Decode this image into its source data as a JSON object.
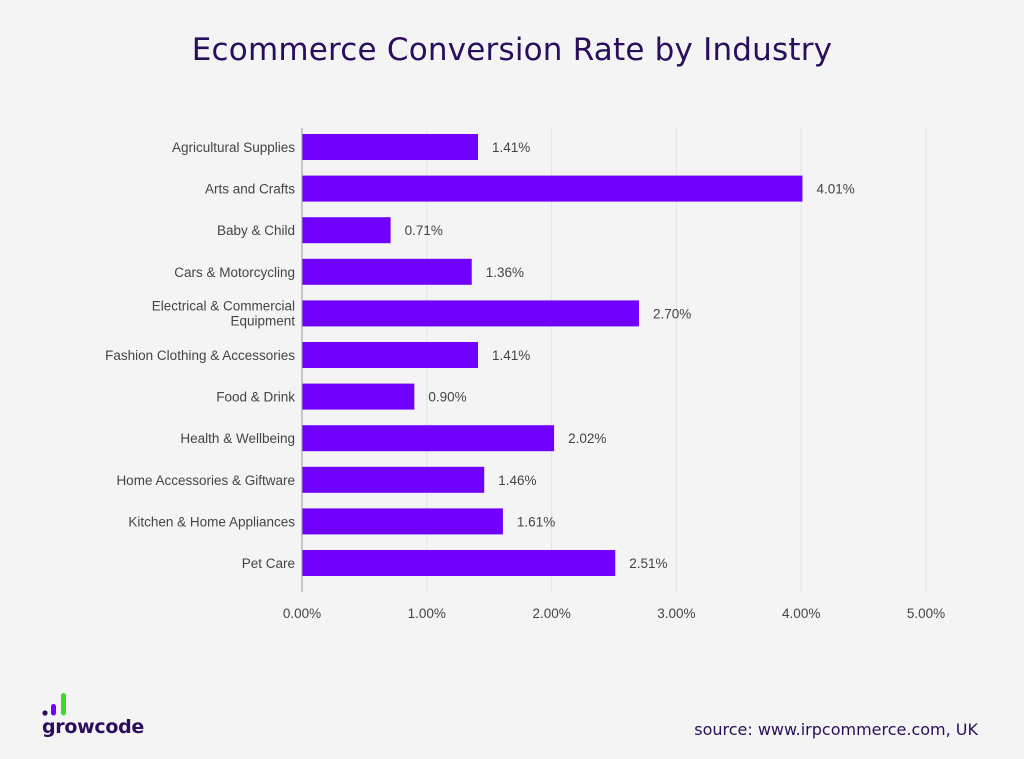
{
  "chart_data": {
    "type": "bar",
    "orientation": "horizontal",
    "title": "Ecommerce Conversion Rate by Industry",
    "categories": [
      "Agricultural Supplies",
      "Arts and Crafts",
      "Baby & Child",
      "Cars & Motorcycling",
      "Electrical & Commercial Equipment",
      "Fashion Clothing & Accessories",
      "Food & Drink",
      "Health & Wellbeing",
      "Home Accessories & Giftware",
      "Kitchen & Home Appliances",
      "Pet Care"
    ],
    "values": [
      1.41,
      4.01,
      0.71,
      1.36,
      2.7,
      1.41,
      0.9,
      2.02,
      1.46,
      1.61,
      2.51
    ],
    "value_labels": [
      "1.41%",
      "4.01%",
      "0.71%",
      "1.36%",
      "2.70%",
      "1.41%",
      "0.90%",
      "2.02%",
      "1.46%",
      "1.61%",
      "2.51%"
    ],
    "xlim": [
      0,
      5
    ],
    "xticks": [
      "0.00%",
      "1.00%",
      "2.00%",
      "3.00%",
      "4.00%",
      "5.00%"
    ],
    "grid": true,
    "bar_color": "#7000ff",
    "xlabel": "",
    "ylabel": ""
  },
  "brand": {
    "logo_text": "growcode",
    "logo_colors": [
      "#2a0e5c",
      "#7000ff",
      "#44d62c"
    ]
  },
  "source_text": "source: www.irpcommerce.com, UK"
}
